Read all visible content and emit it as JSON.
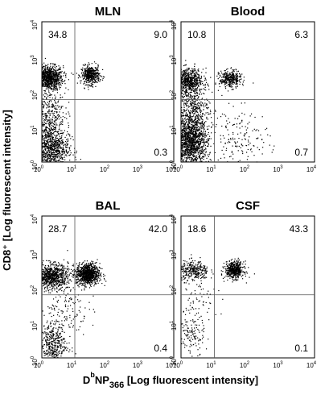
{
  "chart_data": [
    {
      "type": "scatter",
      "title": "MLN",
      "xscale": "log",
      "yscale": "log",
      "xlim": [
        1,
        10000
      ],
      "ylim": [
        1,
        10000
      ],
      "gates": {
        "x": 10,
        "y": 60
      },
      "quadrant_values": {
        "upper_left": "34.8",
        "upper_right": "9.0",
        "lower_right": "0.3"
      },
      "populations": [
        {
          "name": "",
          "center": [
            1.6,
            250
          ],
          "spread": [
            0.22,
            0.17
          ],
          "count": 900
        },
        {
          "name": "",
          "center": [
            30,
            300
          ],
          "spread": [
            0.14,
            0.13
          ],
          "count": 450
        },
        {
          "name": "",
          "center": [
            1.8,
            2.5
          ],
          "spread": [
            0.28,
            0.32
          ],
          "count": 900
        },
        {
          "name": "",
          "center": [
            1.6,
            25
          ],
          "spread": [
            0.25,
            0.35
          ],
          "count": 350
        }
      ]
    },
    {
      "type": "scatter",
      "title": "Blood",
      "xscale": "log",
      "yscale": "log",
      "xlim": [
        1,
        10000
      ],
      "ylim": [
        1,
        10000
      ],
      "gates": {
        "x": 10,
        "y": 60
      },
      "quadrant_values": {
        "upper_left": "10.8",
        "upper_right": "6.3",
        "lower_right": "0.7"
      },
      "populations": [
        {
          "name": "",
          "center": [
            1.7,
            200
          ],
          "spread": [
            0.22,
            0.18
          ],
          "count": 650
        },
        {
          "name": "",
          "center": [
            30,
            230
          ],
          "spread": [
            0.16,
            0.12
          ],
          "count": 350
        },
        {
          "name": "",
          "center": [
            2.0,
            3.5
          ],
          "spread": [
            0.25,
            0.33
          ],
          "count": 1300
        },
        {
          "name": "",
          "center": [
            60,
            4
          ],
          "spread": [
            0.45,
            0.45
          ],
          "count": 180
        },
        {
          "name": "",
          "center": [
            2.0,
            30
          ],
          "spread": [
            0.28,
            0.35
          ],
          "count": 500
        }
      ]
    },
    {
      "type": "scatter",
      "title": "BAL",
      "xscale": "log",
      "yscale": "log",
      "xlim": [
        1,
        10000
      ],
      "ylim": [
        1,
        10000
      ],
      "gates": {
        "x": 10,
        "y": 60
      },
      "quadrant_values": {
        "upper_left": "28.7",
        "upper_right": "42.0",
        "lower_right": "0.4"
      },
      "populations": [
        {
          "name": "",
          "center": [
            2.0,
            200
          ],
          "spread": [
            0.25,
            0.17
          ],
          "count": 800
        },
        {
          "name": "",
          "center": [
            25,
            230
          ],
          "spread": [
            0.18,
            0.15
          ],
          "count": 900
        },
        {
          "name": "",
          "center": [
            2.0,
            2.5
          ],
          "spread": [
            0.22,
            0.28
          ],
          "count": 400
        },
        {
          "name": "",
          "center": [
            5,
            25
          ],
          "spread": [
            0.35,
            0.4
          ],
          "count": 150
        }
      ]
    },
    {
      "type": "scatter",
      "title": "CSF",
      "xscale": "log",
      "yscale": "log",
      "xlim": [
        1,
        10000
      ],
      "ylim": [
        1,
        10000
      ],
      "gates": {
        "x": 10,
        "y": 60
      },
      "quadrant_values": {
        "upper_left": "18.6",
        "upper_right": "43.3",
        "lower_right": "0.1"
      },
      "populations": [
        {
          "name": "",
          "center": [
            2.5,
            280
          ],
          "spread": [
            0.22,
            0.14
          ],
          "count": 300
        },
        {
          "name": "",
          "center": [
            40,
            300
          ],
          "spread": [
            0.14,
            0.12
          ],
          "count": 500
        },
        {
          "name": "",
          "center": [
            2.0,
            4
          ],
          "spread": [
            0.2,
            0.3
          ],
          "count": 120
        },
        {
          "name": "",
          "center": [
            3,
            30
          ],
          "spread": [
            0.3,
            0.35
          ],
          "count": 80
        }
      ]
    }
  ],
  "axes": {
    "tick_base": "10",
    "tick_exponents": [
      "0",
      "1",
      "2",
      "3",
      "4"
    ],
    "x_title": {
      "main": "D",
      "superscript": "b",
      "mid": "NP",
      "subscript": "366",
      "tail": " [Log fluorescent intensity]"
    },
    "y_title": "CD8⁺ [Log fluorescent intensity]"
  },
  "colors": {
    "dots": "#000000",
    "frame": "#000000",
    "gate": "#555555"
  }
}
